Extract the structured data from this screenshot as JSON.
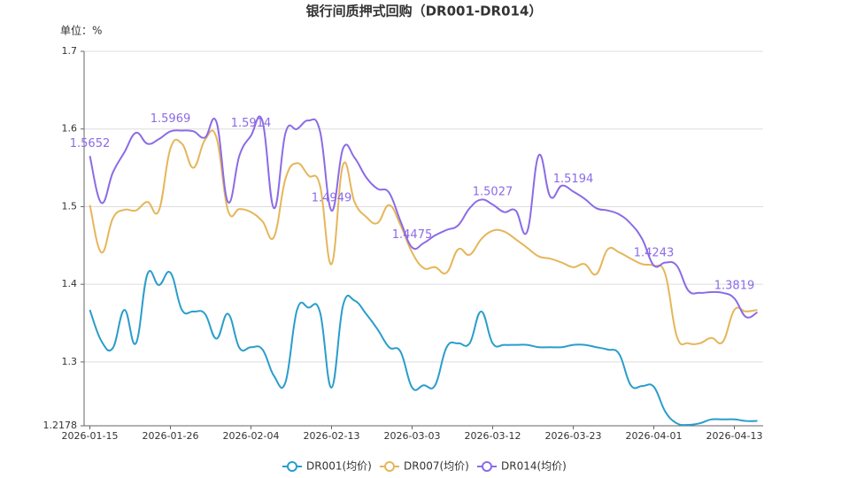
{
  "chart_data": {
    "type": "line",
    "title": "银行间质押式回购（DR001-DR014）",
    "y_unit": "单位：%",
    "categories": [
      "2026-01-15",
      null,
      null,
      null,
      null,
      null,
      null,
      "2026-01-26",
      null,
      null,
      null,
      null,
      null,
      null,
      "2026-02-04",
      null,
      null,
      null,
      null,
      null,
      null,
      "2026-02-13",
      null,
      null,
      null,
      null,
      null,
      null,
      "2026-03-03",
      null,
      null,
      null,
      null,
      null,
      null,
      "2026-03-12",
      null,
      null,
      null,
      null,
      null,
      null,
      "2026-03-23",
      null,
      null,
      null,
      null,
      null,
      null,
      "2026-04-01",
      null,
      null,
      null,
      null,
      null,
      null,
      "2026-04-13",
      null,
      null
    ],
    "ylim": [
      1.2178,
      1.7
    ],
    "yticks": [
      1.2178,
      1.3,
      1.4,
      1.5,
      1.6,
      1.7
    ],
    "grid": true,
    "legend": "bottom",
    "series": [
      {
        "name": "DR001(均价)",
        "color": "#2a9dcb",
        "values": [
          1.367,
          1.327,
          1.318,
          1.367,
          1.324,
          1.413,
          1.399,
          1.415,
          1.367,
          1.365,
          1.362,
          1.33,
          1.362,
          1.318,
          1.319,
          1.316,
          1.282,
          1.274,
          1.367,
          1.37,
          1.364,
          1.267,
          1.373,
          1.379,
          1.362,
          1.342,
          1.319,
          1.313,
          1.267,
          1.27,
          1.27,
          1.319,
          1.324,
          1.324,
          1.365,
          1.324,
          1.322,
          1.322,
          1.322,
          1.319,
          1.319,
          1.319,
          1.322,
          1.322,
          1.319,
          1.316,
          1.31,
          1.27,
          1.269,
          1.268,
          1.236,
          1.221,
          1.219,
          1.221,
          1.226,
          1.226,
          1.226,
          1.224,
          1.224
        ]
      },
      {
        "name": "DR007(均价)",
        "color": "#e5b65a",
        "values": [
          1.502,
          1.441,
          1.485,
          1.496,
          1.495,
          1.506,
          1.495,
          1.575,
          1.581,
          1.55,
          1.586,
          1.589,
          1.495,
          1.497,
          1.493,
          1.481,
          1.461,
          1.536,
          1.556,
          1.54,
          1.527,
          1.426,
          1.554,
          1.506,
          1.487,
          1.479,
          1.502,
          1.476,
          1.441,
          1.421,
          1.422,
          1.415,
          1.445,
          1.438,
          1.458,
          1.469,
          1.468,
          1.458,
          1.447,
          1.436,
          1.433,
          1.428,
          1.422,
          1.426,
          1.413,
          1.445,
          1.441,
          1.433,
          1.426,
          1.424,
          1.413,
          1.333,
          1.324,
          1.324,
          1.331,
          1.326,
          1.367,
          1.365,
          1.367
        ]
      },
      {
        "name": "DR014(均价)",
        "color": "#8b6be6",
        "values": [
          1.5652,
          1.505,
          1.544,
          1.57,
          1.595,
          1.581,
          1.587,
          1.5969,
          1.598,
          1.597,
          1.589,
          1.609,
          1.506,
          1.566,
          1.5914,
          1.61,
          1.498,
          1.595,
          1.6,
          1.611,
          1.597,
          1.4949,
          1.575,
          1.563,
          1.538,
          1.523,
          1.518,
          1.481,
          1.4475,
          1.453,
          1.463,
          1.47,
          1.476,
          1.498,
          1.509,
          1.5027,
          1.493,
          1.495,
          1.468,
          1.566,
          1.513,
          1.527,
          1.5194,
          1.51,
          1.498,
          1.495,
          1.49,
          1.478,
          1.458,
          1.4243,
          1.428,
          1.424,
          1.392,
          1.389,
          1.39,
          1.389,
          1.3819,
          1.358,
          1.364
        ],
        "value_labels": [
          "1.5652",
          null,
          null,
          null,
          null,
          null,
          null,
          "1.5969",
          null,
          null,
          null,
          null,
          null,
          null,
          "1.5914",
          null,
          null,
          null,
          null,
          null,
          null,
          "1.4949",
          null,
          null,
          null,
          null,
          null,
          null,
          "1.4475",
          null,
          null,
          null,
          null,
          null,
          null,
          "1.5027",
          null,
          null,
          null,
          null,
          null,
          null,
          "1.5194",
          null,
          null,
          null,
          null,
          null,
          null,
          "1.4243",
          null,
          null,
          null,
          null,
          null,
          null,
          "1.3819",
          null,
          null
        ]
      }
    ]
  }
}
